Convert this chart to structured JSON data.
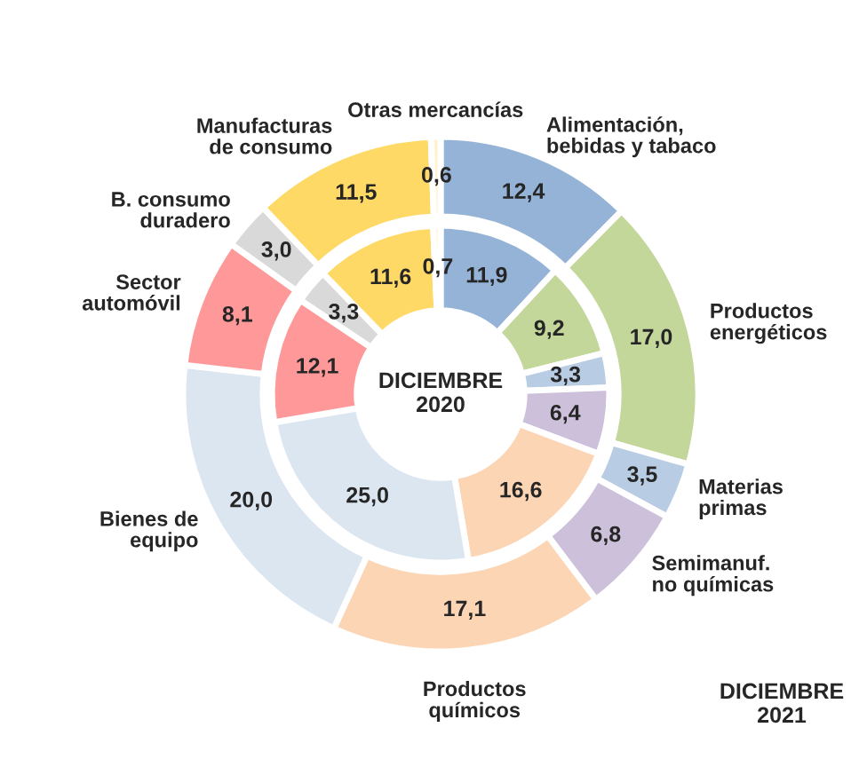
{
  "chart_data": {
    "type": "donut",
    "categories": [
      "Alimentación,\nbebidas y tabaco",
      "Productos\nenergéticos",
      "Materias\nprimas",
      "Semimanuf.\nno químicas",
      "Productos\nquímicos",
      "Bienes de\nequipo",
      "Sector\nautomóvil",
      "B. consumo\nduradero",
      "Manufacturas\nde consumo",
      "Otras mercancías"
    ],
    "colors": [
      "#95b3d7",
      "#c4d79b",
      "#b8cce4",
      "#ccc0da",
      "#fcd5b4",
      "#dce6f1",
      "#ff9999",
      "#d9d9d9",
      "#ffd966",
      "#fff2cc"
    ],
    "series": [
      {
        "name": "DICIEMBRE\n2021",
        "values": [
          12.4,
          17.0,
          3.5,
          6.8,
          17.1,
          20.0,
          8.1,
          3.0,
          11.5,
          0.6
        ],
        "value_labels": [
          "12,4",
          "17,0",
          "3,5",
          "6,8",
          "17,1",
          "20,0",
          "8,1",
          "3,0",
          "11,5",
          "0,6"
        ]
      },
      {
        "name": "DICIEMBRE\n2020",
        "values": [
          11.9,
          9.2,
          3.3,
          6.4,
          16.6,
          25.0,
          12.1,
          3.3,
          11.6,
          0.7
        ],
        "value_labels": [
          "11,9",
          "9,2",
          "3,3",
          "6,4",
          "16,6",
          "25,0",
          "12,1",
          "3,3",
          "11,6",
          "0,7"
        ]
      }
    ]
  }
}
